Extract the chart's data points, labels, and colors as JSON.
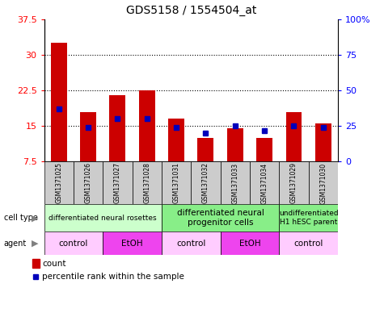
{
  "title": "GDS5158 / 1554504_at",
  "samples": [
    "GSM1371025",
    "GSM1371026",
    "GSM1371027",
    "GSM1371028",
    "GSM1371031",
    "GSM1371032",
    "GSM1371033",
    "GSM1371034",
    "GSM1371029",
    "GSM1371030"
  ],
  "counts": [
    32.5,
    18.0,
    21.5,
    22.5,
    16.5,
    12.5,
    14.5,
    12.5,
    18.0,
    15.5
  ],
  "percentile_ranks": [
    37,
    24,
    30,
    30,
    24,
    20,
    25,
    22,
    25,
    24
  ],
  "y_min": 7.5,
  "y_max": 37.5,
  "y_ticks_left": [
    7.5,
    15.0,
    22.5,
    30.0,
    37.5
  ],
  "y_ticks_right": [
    0,
    25,
    50,
    75,
    100
  ],
  "bar_color": "#cc0000",
  "dot_color": "#0000bb",
  "sample_bg": "#cccccc",
  "cell_type_groups": [
    {
      "label": "differentiated neural rosettes",
      "xstart": 0,
      "xend": 4,
      "color": "#ccffcc",
      "fontsize": 6.5
    },
    {
      "label": "differentiated neural\nprogenitor cells",
      "xstart": 4,
      "xend": 8,
      "color": "#88ee88",
      "fontsize": 7.5
    },
    {
      "label": "undifferentiated\nH1 hESC parent",
      "xstart": 8,
      "xend": 10,
      "color": "#88ee88",
      "fontsize": 6.5
    }
  ],
  "agent_groups": [
    {
      "label": "control",
      "xstart": 0,
      "xend": 2,
      "color": "#ffccff"
    },
    {
      "label": "EtOH",
      "xstart": 2,
      "xend": 4,
      "color": "#ee44ee"
    },
    {
      "label": "control",
      "xstart": 4,
      "xend": 6,
      "color": "#ffccff"
    },
    {
      "label": "EtOH",
      "xstart": 6,
      "xend": 8,
      "color": "#ee44ee"
    },
    {
      "label": "control",
      "xstart": 8,
      "xend": 10,
      "color": "#ffccff"
    }
  ],
  "legend_count_color": "#cc0000",
  "legend_dot_color": "#0000bb"
}
